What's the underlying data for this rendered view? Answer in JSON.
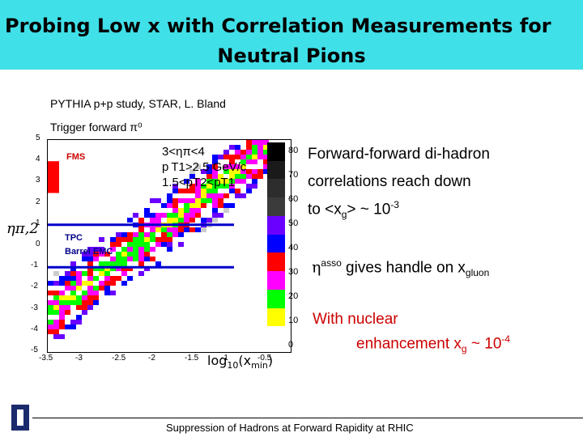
{
  "header": {
    "title_line1": "Probing Low x with Correlation Measurements for",
    "title_line2": "Neutral Pions",
    "bg_color": "#40E0E8"
  },
  "subtitle": {
    "line1": "PYTHIA p+p study, STAR,  L. Bland",
    "line2": "Trigger forward π⁰"
  },
  "chart_data": {
    "type": "heatmap",
    "xlabel": "log₁₀(x_min)",
    "ylabel": "ηπ,2",
    "xticks": [
      "-3.5",
      "-3",
      "-2.5",
      "-2",
      "-1.5",
      "-1",
      "-0.5"
    ],
    "yticks": [
      "5",
      "4",
      "3",
      "2",
      "1",
      "0",
      "-1",
      "-2",
      "-3",
      "-4",
      "-5"
    ],
    "xlim": [
      -3.5,
      -0.5
    ],
    "ylim": [
      -5,
      5
    ],
    "legend_lines": [
      "3<ηπ<4",
      "p T1>2.5 GeV/c",
      "1.5<pT2<pT1"
    ],
    "detector_labels": {
      "fms": "FMS",
      "tpc": "TPC",
      "bemc": "Barrel EMC"
    },
    "tpc_eta_range": [
      -1,
      1
    ],
    "fms_eta_range": [
      2.5,
      4
    ],
    "colorbar_ticks": [
      "80",
      "70",
      "60",
      "50",
      "40",
      "30",
      "20",
      "10",
      "0"
    ],
    "colorbar_colors": [
      "#000000",
      "#1a1a1a",
      "#2d2d2d",
      "#3b3b3b",
      "#6a00ff",
      "#0000ff",
      "#ff0000",
      "#ff00ff",
      "#00ff00",
      "#ffff00",
      "#ffffff"
    ]
  },
  "right_panel": {
    "para1_line1": "Forward-forward di-hadron",
    "para1_line2": "correlations  reach down",
    "para1_line3": "to  <x",
    "para1_sub": "g",
    "para1_after": "> ~ 10",
    "para1_exp": "-3",
    "para2_eta": "η",
    "para2_sup": "asso",
    "para2_text": " gives handle on x",
    "para2_sub": "gluon",
    "para3_line1": "With nuclear",
    "para3_line2": "enhancement  x",
    "para3_sub": "g",
    "para3_after": " ~ 10",
    "para3_exp": "-4"
  },
  "footer": {
    "text": "Suppression of Hadrons at Forward Rapidity at RHIC"
  }
}
